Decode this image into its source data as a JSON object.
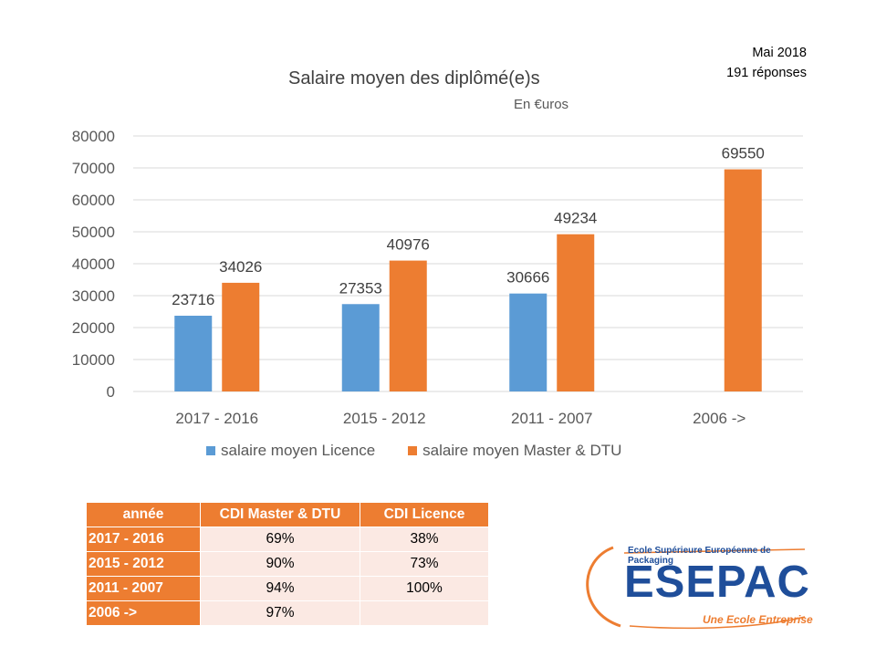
{
  "header": {
    "date": "Mai 2018",
    "responses": "191 réponses"
  },
  "chart_data": {
    "type": "bar",
    "title": "Salaire moyen des diplômé(e)s",
    "subtitle": "En €uros",
    "categories": [
      "2017 - 2016",
      "2015 - 2012",
      "2011 - 2007",
      "2006  ->"
    ],
    "series": [
      {
        "name": "salaire moyen Licence",
        "color": "#5b9bd5",
        "values": [
          23716,
          27353,
          30666,
          null
        ]
      },
      {
        "name": "salaire moyen Master & DTU",
        "color": "#ed7d31",
        "values": [
          34026,
          40976,
          49234,
          69550
        ]
      }
    ],
    "ylim": [
      0,
      80000
    ],
    "yticks": [
      0,
      10000,
      20000,
      30000,
      40000,
      50000,
      60000,
      70000,
      80000
    ],
    "grid": true,
    "legend_position": "bottom",
    "xlabel": "",
    "ylabel": ""
  },
  "table": {
    "headers": [
      "année",
      "CDI Master & DTU",
      "CDI Licence"
    ],
    "rows": [
      {
        "year": "2017 - 2016",
        "master": "69%",
        "licence": "38%"
      },
      {
        "year": "2015 - 2012",
        "master": "90%",
        "licence": "73%"
      },
      {
        "year": "2011 - 2007",
        "master": "94%",
        "licence": "100%"
      },
      {
        "year": "2006  ->",
        "master": "97%",
        "licence": ""
      }
    ]
  },
  "logo": {
    "name": "ESEPAC",
    "full_name": "Ecole Supérieure Européenne de Packaging",
    "tagline": "Une Ecole Entreprise"
  }
}
